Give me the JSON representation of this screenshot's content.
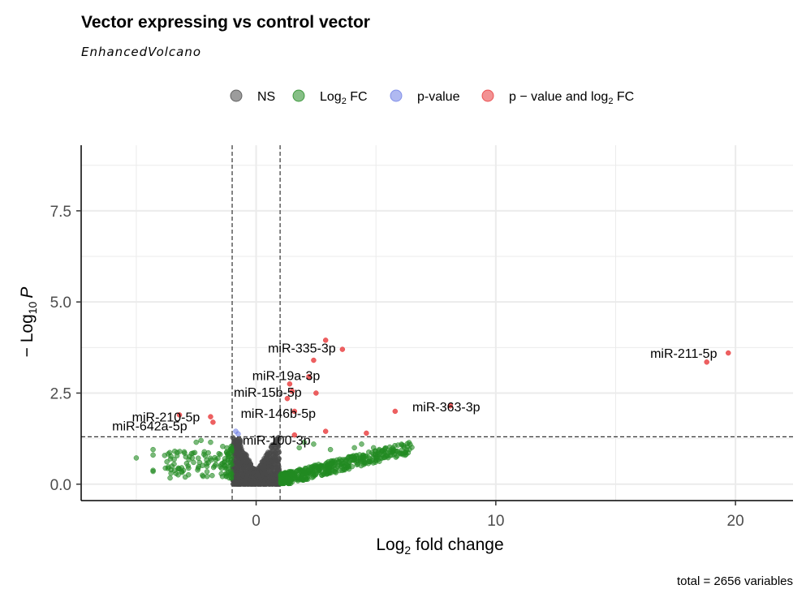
{
  "chart_data": {
    "type": "scatter",
    "title": "Vector expressing vs control vector",
    "subtitle": "EnhancedVolcano",
    "caption": "total = 2656 variables",
    "xlabel": {
      "base": "Log",
      "sub": "2",
      "rest": " fold change"
    },
    "ylabel": {
      "prefix": "− Log",
      "sub": "10",
      "var": "P"
    },
    "xlim": [
      -7.3,
      22.4
    ],
    "ylim": [
      -0.45,
      9.3
    ],
    "x_ticks": [
      0,
      10,
      20
    ],
    "y_ticks": [
      0.0,
      2.5,
      5.0,
      7.5
    ],
    "y_tick_labels": [
      "0.0",
      "2.5",
      "5.0",
      "7.5"
    ],
    "grid": true,
    "legend_position": "top",
    "fc_cutoff": [
      -1,
      1
    ],
    "p_cutoff_line": 1.3,
    "colors": {
      "NS": "#4a4a4a",
      "FC": "#228b22",
      "P": "#6f7fe6",
      "FC_P": "#e8383a"
    },
    "legend": [
      {
        "key": "NS",
        "parts": [
          {
            "t": "NS"
          }
        ]
      },
      {
        "key": "FC",
        "parts": [
          {
            "t": "Log"
          },
          {
            "t": "2",
            "sub": true
          },
          {
            "t": " FC"
          }
        ]
      },
      {
        "key": "P",
        "parts": [
          {
            "t": "p-value"
          }
        ]
      },
      {
        "key": "FC_P",
        "parts": [
          {
            "t": "p − value and log"
          },
          {
            "t": "2",
            "sub": true
          },
          {
            "t": " FC"
          }
        ]
      }
    ],
    "series": [
      {
        "key": "FC_P",
        "points": [
          [
            2.9,
            3.95
          ],
          [
            3.6,
            3.7
          ],
          [
            2.4,
            3.4
          ],
          [
            18.8,
            3.35
          ],
          [
            19.7,
            3.6
          ],
          [
            2.2,
            2.95
          ],
          [
            1.4,
            2.75
          ],
          [
            1.5,
            2.55
          ],
          [
            2.5,
            2.5
          ],
          [
            1.3,
            2.35
          ],
          [
            1.6,
            2.0
          ],
          [
            5.8,
            2.0
          ],
          [
            8.1,
            2.15
          ],
          [
            -3.2,
            1.9
          ],
          [
            -1.9,
            1.85
          ],
          [
            -1.8,
            1.7
          ],
          [
            2.9,
            1.45
          ],
          [
            4.6,
            1.4
          ],
          [
            1.6,
            1.35
          ]
        ]
      },
      {
        "key": "P",
        "points": [
          [
            -0.85,
            1.45
          ],
          [
            -0.75,
            1.38
          ]
        ]
      },
      {
        "key": "NS",
        "points": []
      },
      {
        "key": "FC",
        "points": []
      }
    ],
    "labels": [
      {
        "text": "miR-335-3p",
        "x": 3.6,
        "y": 3.7
      },
      {
        "text": "miR-211-5p",
        "x": 19.7,
        "y": 3.6
      },
      {
        "text": "miR-19a-3p",
        "x": 2.2,
        "y": 2.95
      },
      {
        "text": "miR-15b-5p",
        "x": 1.5,
        "y": 2.55
      },
      {
        "text": "miR-146b-5p",
        "x": 1.6,
        "y": 2.0
      },
      {
        "text": "miR-363-3p",
        "x": 8.1,
        "y": 2.15
      },
      {
        "text": "miR-210-5p",
        "x": -1.9,
        "y": 1.85
      },
      {
        "text": "miR-642a-5p",
        "x": -1.8,
        "y": 1.7
      },
      {
        "text": "miR-100-3p",
        "x": 1.6,
        "y": 1.35
      }
    ]
  }
}
